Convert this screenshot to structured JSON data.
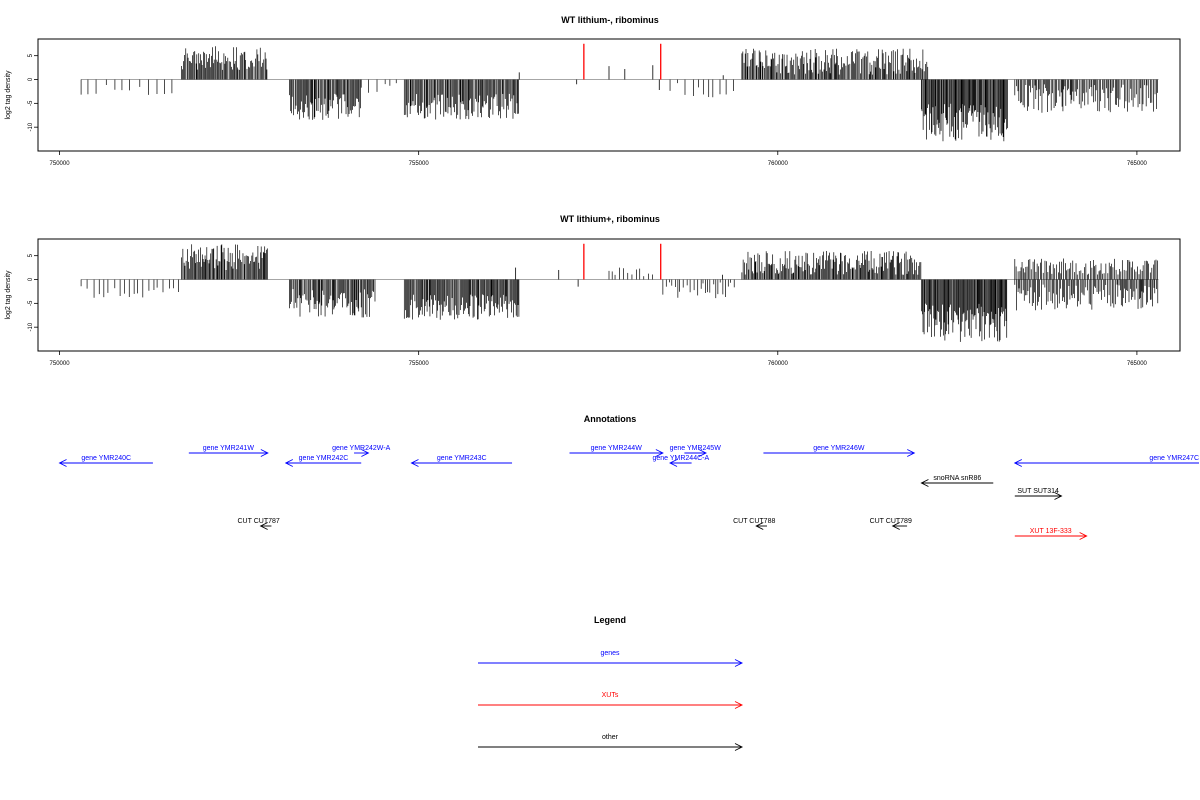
{
  "chart_data": [
    {
      "type": "bar",
      "title": "WT lithium-, ribominus",
      "ylabel": "log2 tag density",
      "xlim": [
        749700,
        765600
      ],
      "ylim": [
        -15,
        8.5
      ],
      "x_ticks": [
        750000,
        755000,
        760000,
        765000
      ],
      "y_ticks": [
        5,
        0,
        -5,
        -10
      ],
      "grid": false,
      "baseline": 0,
      "bar_color": "#000000",
      "red_markers": {
        "color": "#ff0000",
        "x": [
          757300,
          758370
        ],
        "y": [
          0,
          7.5
        ]
      },
      "density_regions": [
        {
          "start": 750300,
          "end": 751700,
          "sign": -1,
          "min": 1,
          "max": 3.5,
          "step": 120
        },
        {
          "start": 751700,
          "end": 752900,
          "sign": 1,
          "min": 2,
          "max": 7,
          "step": 15
        },
        {
          "start": 753200,
          "end": 754200,
          "sign": -1,
          "min": 3,
          "max": 8.5,
          "step": 15
        },
        {
          "start": 754200,
          "end": 754700,
          "sign": -1,
          "min": 0.5,
          "max": 3,
          "step": 90
        },
        {
          "start": 754800,
          "end": 756400,
          "sign": -1,
          "min": 3,
          "max": 8.5,
          "step": 15
        },
        {
          "start": 758500,
          "end": 759400,
          "sign": -1,
          "min": 0.5,
          "max": 4,
          "step": 90
        },
        {
          "start": 759500,
          "end": 762100,
          "sign": 1,
          "min": 1,
          "max": 6.5,
          "step": 15
        },
        {
          "start": 762000,
          "end": 763200,
          "sign": -1,
          "min": 5,
          "max": 13,
          "step": 12
        },
        {
          "start": 763300,
          "end": 765300,
          "sign": -1,
          "min": 1,
          "max": 7,
          "step": 18
        }
      ],
      "isolated_bars": [
        [
          756400,
          1.5
        ],
        [
          757200,
          -1
        ],
        [
          757650,
          2.8
        ],
        [
          757870,
          2.2
        ],
        [
          758260,
          3.0
        ],
        [
          758350,
          -2.2
        ],
        [
          759240,
          0.9
        ]
      ]
    },
    {
      "type": "bar",
      "title": "WT lithium+, ribominus",
      "ylabel": "log2 tag density",
      "xlim": [
        749700,
        765600
      ],
      "ylim": [
        -15,
        8.5
      ],
      "x_ticks": [
        750000,
        755000,
        760000,
        765000
      ],
      "y_ticks": [
        5,
        0,
        -5,
        -10
      ],
      "grid": false,
      "baseline": 0,
      "bar_color": "#000000",
      "red_markers": {
        "color": "#ff0000",
        "x": [
          757300,
          758370
        ],
        "y": [
          0,
          7.5
        ]
      },
      "density_regions": [
        {
          "start": 750300,
          "end": 751700,
          "sign": -1,
          "min": 1,
          "max": 4,
          "step": 70
        },
        {
          "start": 751700,
          "end": 752900,
          "sign": 1,
          "min": 2,
          "max": 7.5,
          "step": 14
        },
        {
          "start": 753200,
          "end": 754400,
          "sign": -1,
          "min": 2,
          "max": 8,
          "step": 15
        },
        {
          "start": 754800,
          "end": 756400,
          "sign": -1,
          "min": 3,
          "max": 8.5,
          "step": 14
        },
        {
          "start": 757650,
          "end": 758300,
          "sign": 1,
          "min": 0.5,
          "max": 2.5,
          "step": 60
        },
        {
          "start": 758400,
          "end": 759400,
          "sign": -1,
          "min": 0.5,
          "max": 4,
          "step": 40
        },
        {
          "start": 759500,
          "end": 762000,
          "sign": 1,
          "min": 1,
          "max": 6,
          "step": 14
        },
        {
          "start": 762000,
          "end": 763200,
          "sign": -1,
          "min": 5,
          "max": 13.5,
          "step": 12
        },
        {
          "start": 763300,
          "end": 765300,
          "sign": 1,
          "min": 1,
          "max": 4.5,
          "step": 20
        },
        {
          "start": 763300,
          "end": 765300,
          "sign": -1,
          "min": 1,
          "max": 6.5,
          "step": 18
        }
      ],
      "isolated_bars": [
        [
          756350,
          2.5
        ],
        [
          756950,
          2.0
        ],
        [
          757220,
          -1.5
        ],
        [
          759230,
          1.0
        ]
      ]
    }
  ],
  "annotations": {
    "title": "Annotations",
    "xlim": [
      749700,
      765600
    ],
    "features": [
      {
        "label": "gene YMR240C",
        "type": "gene",
        "strand": "-",
        "start": 750000,
        "end": 751300,
        "row": 1
      },
      {
        "label": "gene YMR241W",
        "type": "gene",
        "strand": "+",
        "start": 751800,
        "end": 752900,
        "row": 0
      },
      {
        "label": "gene YMR242C",
        "type": "gene",
        "strand": "-",
        "start": 753150,
        "end": 754200,
        "row": 1
      },
      {
        "label": "gene YMR242W-A",
        "type": "gene",
        "strand": "+",
        "start": 754100,
        "end": 754300,
        "row": 0
      },
      {
        "label": "gene YMR243C",
        "type": "gene",
        "strand": "-",
        "start": 754900,
        "end": 756300,
        "row": 1
      },
      {
        "label": "gene YMR244W",
        "type": "gene",
        "strand": "+",
        "start": 757100,
        "end": 758400,
        "row": 0
      },
      {
        "label": "gene YMR244C-A",
        "type": "gene",
        "strand": "-",
        "start": 758500,
        "end": 758800,
        "row": 1
      },
      {
        "label": "gene YMR245W",
        "type": "gene",
        "strand": "+",
        "start": 758700,
        "end": 759000,
        "row": 0
      },
      {
        "label": "gene YMR246W",
        "type": "gene",
        "strand": "+",
        "start": 759800,
        "end": 761900,
        "row": 0
      },
      {
        "label": "gene YMR247C",
        "type": "gene",
        "strand": "-",
        "start": 763300,
        "end": 766000,
        "row": 1
      },
      {
        "label": "snoRNA snR86",
        "type": "other",
        "strand": "-",
        "start": 762000,
        "end": 763000,
        "row": 2
      },
      {
        "label": "SUT SUT314",
        "type": "other",
        "strand": "+",
        "start": 763300,
        "end": 763950,
        "row": 3
      },
      {
        "label": "CUT CUT787",
        "type": "other",
        "strand": "-",
        "start": 752800,
        "end": 752950,
        "row": 4
      },
      {
        "label": "CUT CUT788",
        "type": "other",
        "strand": "-",
        "start": 759700,
        "end": 759850,
        "row": 4
      },
      {
        "label": "CUT CUT789",
        "type": "other",
        "strand": "-",
        "start": 761600,
        "end": 761800,
        "row": 4
      },
      {
        "label": "XUT 13F-333",
        "type": "xut",
        "strand": "+",
        "start": 763300,
        "end": 764300,
        "row": 5
      }
    ],
    "colors": {
      "gene": "#0000ff",
      "xut": "#ff0000",
      "other": "#000000"
    }
  },
  "legend": {
    "title": "Legend",
    "entries": [
      {
        "label": "genes",
        "color": "#0000ff"
      },
      {
        "label": "XUTs",
        "color": "#ff0000"
      },
      {
        "label": "other",
        "color": "#000000"
      }
    ]
  }
}
